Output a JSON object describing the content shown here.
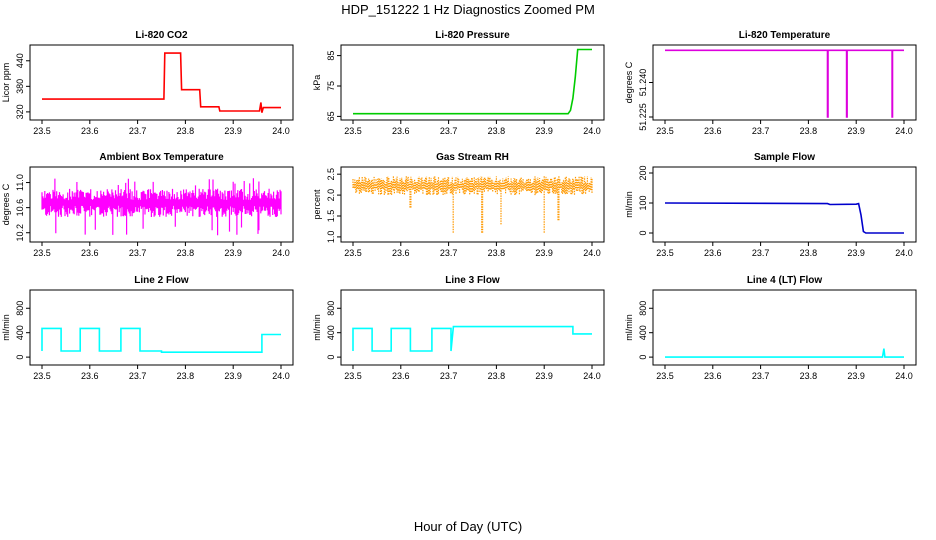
{
  "title": "HDP_151222  1 Hz Diagnostics Zoomed PM",
  "xlabel": "Hour of Day (UTC)",
  "chart_data": [
    {
      "type": "line",
      "title": "Li-820 CO2",
      "ylabel": "Licor ppm",
      "color": "#ff0000",
      "xlim": [
        23.5,
        24.0
      ],
      "ylim": [
        308,
        470
      ],
      "xticks": [
        "23.5",
        "23.6",
        "23.7",
        "23.8",
        "23.9",
        "24.0"
      ],
      "yticks": [
        320,
        380,
        440
      ],
      "series": [
        {
          "x": [
            23.5,
            23.755,
            23.757,
            23.79,
            23.792,
            23.83,
            23.832,
            23.87,
            23.872,
            23.955,
            23.958,
            23.96,
            23.963,
            24.0
          ],
          "y": [
            350,
            350,
            458,
            458,
            372,
            372,
            332,
            332,
            322,
            322,
            342,
            318,
            330,
            330
          ]
        }
      ]
    },
    {
      "type": "line",
      "title": "Li-820 Pressure",
      "ylabel": "kPa",
      "color": "#00cc00",
      "xlim": [
        23.5,
        24.0
      ],
      "ylim": [
        64.8,
        87.5
      ],
      "xticks": [
        "23.5",
        "23.6",
        "23.7",
        "23.8",
        "23.9",
        "24.0"
      ],
      "yticks": [
        65,
        75,
        85
      ],
      "series": [
        {
          "x": [
            23.5,
            23.94,
            23.95,
            23.955,
            23.96,
            23.965,
            23.97,
            24.0
          ],
          "y": [
            65.9,
            65.9,
            65.9,
            67,
            71,
            78,
            87,
            87
          ]
        }
      ]
    },
    {
      "type": "line",
      "title": "Li-820 Temperature",
      "ylabel": "degrees C",
      "color": "#dd00dd",
      "xlim": [
        23.5,
        24.0
      ],
      "ylim": [
        51.225,
        51.255
      ],
      "xticks": [
        "23.5",
        "23.6",
        "23.7",
        "23.8",
        "23.9",
        "24.0"
      ],
      "yticks": [
        "51.225",
        "51.240"
      ],
      "series": [
        {
          "x": [
            23.5,
            23.84,
            23.84,
            23.841,
            23.841,
            23.88,
            23.88,
            23.881,
            23.881,
            23.975,
            23.975,
            23.976,
            23.976,
            24.0
          ],
          "y": [
            51.254,
            51.254,
            51.225,
            51.225,
            51.254,
            51.254,
            51.225,
            51.225,
            51.254,
            51.254,
            51.225,
            51.225,
            51.254,
            51.254
          ]
        }
      ]
    },
    {
      "type": "line",
      "title": "Ambient Box Temperature",
      "ylabel": "degrees C",
      "color": "#ff00ff",
      "xlim": [
        23.5,
        24.0
      ],
      "ylim": [
        10.1,
        11.2
      ],
      "xticks": [
        "23.5",
        "23.6",
        "23.7",
        "23.8",
        "23.9",
        "24.0"
      ],
      "yticks": [
        "10.2",
        "10.6",
        "11.0"
      ],
      "series": [
        {
          "noise": true,
          "low": 10.45,
          "high": 10.9,
          "spike_low": 10.15,
          "spike_high": 11.1
        }
      ]
    },
    {
      "type": "scatter",
      "title": "Gas Stream RH",
      "ylabel": "percent",
      "color": "#ff9900",
      "xlim": [
        23.5,
        24.0
      ],
      "ylim": [
        0.95,
        2.6
      ],
      "xticks": [
        "23.5",
        "23.6",
        "23.7",
        "23.8",
        "23.9",
        "24.0"
      ],
      "yticks": [
        "1.0",
        "1.5",
        "2.0",
        "2.5"
      ],
      "series": [
        {
          "noise": true,
          "low": 2.0,
          "high": 2.45,
          "dips": [
            [
              23.71,
              1.1
            ],
            [
              23.77,
              1.1
            ],
            [
              23.81,
              1.3
            ],
            [
              23.9,
              1.1
            ],
            [
              23.93,
              1.4
            ],
            [
              23.62,
              1.7
            ]
          ]
        }
      ]
    },
    {
      "type": "line",
      "title": "Sample Flow",
      "ylabel": "ml/min",
      "color": "#0000cc",
      "xlim": [
        23.5,
        24.0
      ],
      "ylim": [
        -20,
        210
      ],
      "xticks": [
        "23.5",
        "23.6",
        "23.7",
        "23.8",
        "23.9",
        "24.0"
      ],
      "yticks": [
        0,
        100,
        200
      ],
      "series": [
        {
          "x": [
            23.5,
            23.84,
            23.845,
            23.9,
            23.905,
            23.91,
            23.915,
            23.92,
            24.0
          ],
          "y": [
            100,
            98,
            95,
            96,
            98,
            60,
            5,
            0,
            0
          ]
        }
      ]
    },
    {
      "type": "line",
      "title": "Line 2 Flow",
      "ylabel": "ml/min",
      "color": "#00ffff",
      "xlim": [
        23.5,
        24.0
      ],
      "ylim": [
        -80,
        1050
      ],
      "xticks": [
        "23.5",
        "23.6",
        "23.7",
        "23.8",
        "23.9",
        "24.0"
      ],
      "yticks": [
        0,
        400,
        800
      ],
      "series": [
        {
          "x": [
            23.5,
            23.5,
            23.54,
            23.54,
            23.58,
            23.58,
            23.62,
            23.62,
            23.665,
            23.665,
            23.705,
            23.705,
            23.75,
            23.75,
            23.96,
            23.96,
            24.0
          ],
          "y": [
            100,
            470,
            470,
            100,
            100,
            470,
            470,
            100,
            100,
            470,
            470,
            100,
            100,
            80,
            80,
            370,
            370
          ]
        }
      ]
    },
    {
      "type": "line",
      "title": "Line 3 Flow",
      "ylabel": "ml/min",
      "color": "#00ffff",
      "xlim": [
        23.5,
        24.0
      ],
      "ylim": [
        -80,
        1050
      ],
      "xticks": [
        "23.5",
        "23.6",
        "23.7",
        "23.8",
        "23.9",
        "24.0"
      ],
      "yticks": [
        0,
        400,
        800
      ],
      "series": [
        {
          "x": [
            23.5,
            23.5,
            23.54,
            23.54,
            23.58,
            23.58,
            23.62,
            23.62,
            23.665,
            23.665,
            23.705,
            23.705,
            23.71,
            23.96,
            23.96,
            24.0
          ],
          "y": [
            100,
            470,
            470,
            100,
            100,
            470,
            470,
            100,
            100,
            470,
            470,
            100,
            500,
            500,
            380,
            380
          ]
        }
      ]
    },
    {
      "type": "line",
      "title": "Line 4 (LT) Flow",
      "ylabel": "ml/min",
      "color": "#00ffff",
      "xlim": [
        23.5,
        24.0
      ],
      "ylim": [
        -80,
        1050
      ],
      "xticks": [
        "23.5",
        "23.6",
        "23.7",
        "23.8",
        "23.9",
        "24.0"
      ],
      "yticks": [
        0,
        400,
        800
      ],
      "series": [
        {
          "x": [
            23.5,
            23.955,
            23.958,
            23.96,
            23.962,
            24.0
          ],
          "y": [
            0,
            0,
            140,
            0,
            0,
            0
          ]
        }
      ]
    }
  ]
}
